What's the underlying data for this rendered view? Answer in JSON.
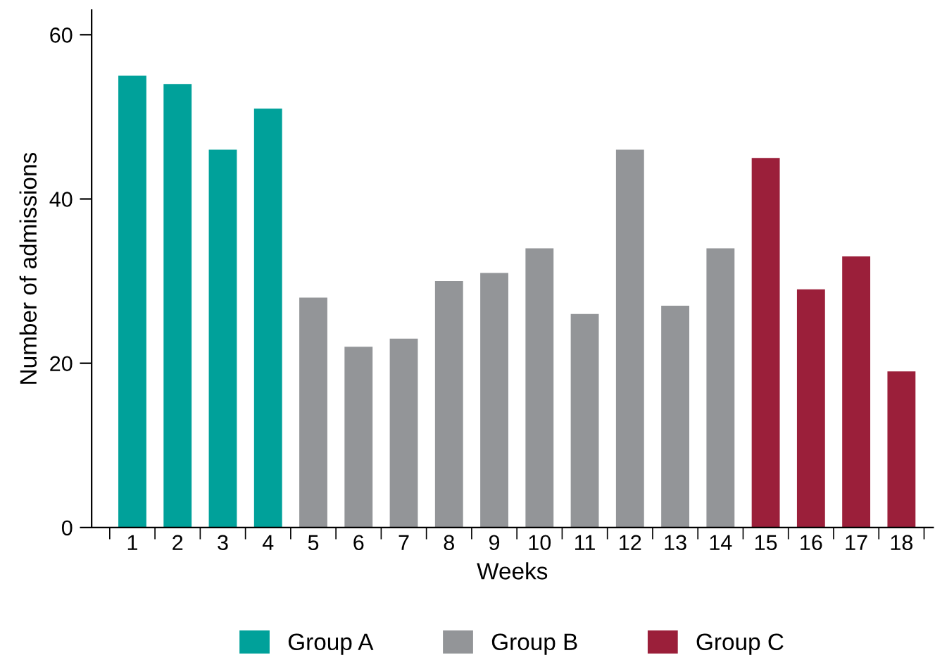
{
  "chart_data": {
    "type": "bar",
    "xlabel": "Weeks",
    "ylabel": "Number of admissions",
    "categories": [
      "1",
      "2",
      "3",
      "4",
      "5",
      "6",
      "7",
      "8",
      "9",
      "10",
      "11",
      "12",
      "13",
      "14",
      "15",
      "16",
      "17",
      "18"
    ],
    "series": [
      {
        "name": "Group A",
        "color": "#00a19a",
        "values": [
          55,
          54,
          46,
          51,
          null,
          null,
          null,
          null,
          null,
          null,
          null,
          null,
          null,
          null,
          null,
          null,
          null,
          null
        ]
      },
      {
        "name": "Group B",
        "color": "#939598",
        "values": [
          null,
          null,
          null,
          null,
          28,
          22,
          23,
          30,
          31,
          34,
          26,
          46,
          27,
          34,
          null,
          null,
          null,
          null
        ]
      },
      {
        "name": "Group C",
        "color": "#9b1f3a",
        "values": [
          null,
          null,
          null,
          null,
          null,
          null,
          null,
          null,
          null,
          null,
          null,
          null,
          null,
          null,
          45,
          29,
          33,
          19
        ]
      }
    ],
    "ylim": [
      0,
      63
    ],
    "yticks": [
      0,
      20,
      40,
      60
    ],
    "grid": false,
    "legend": "bottom"
  }
}
